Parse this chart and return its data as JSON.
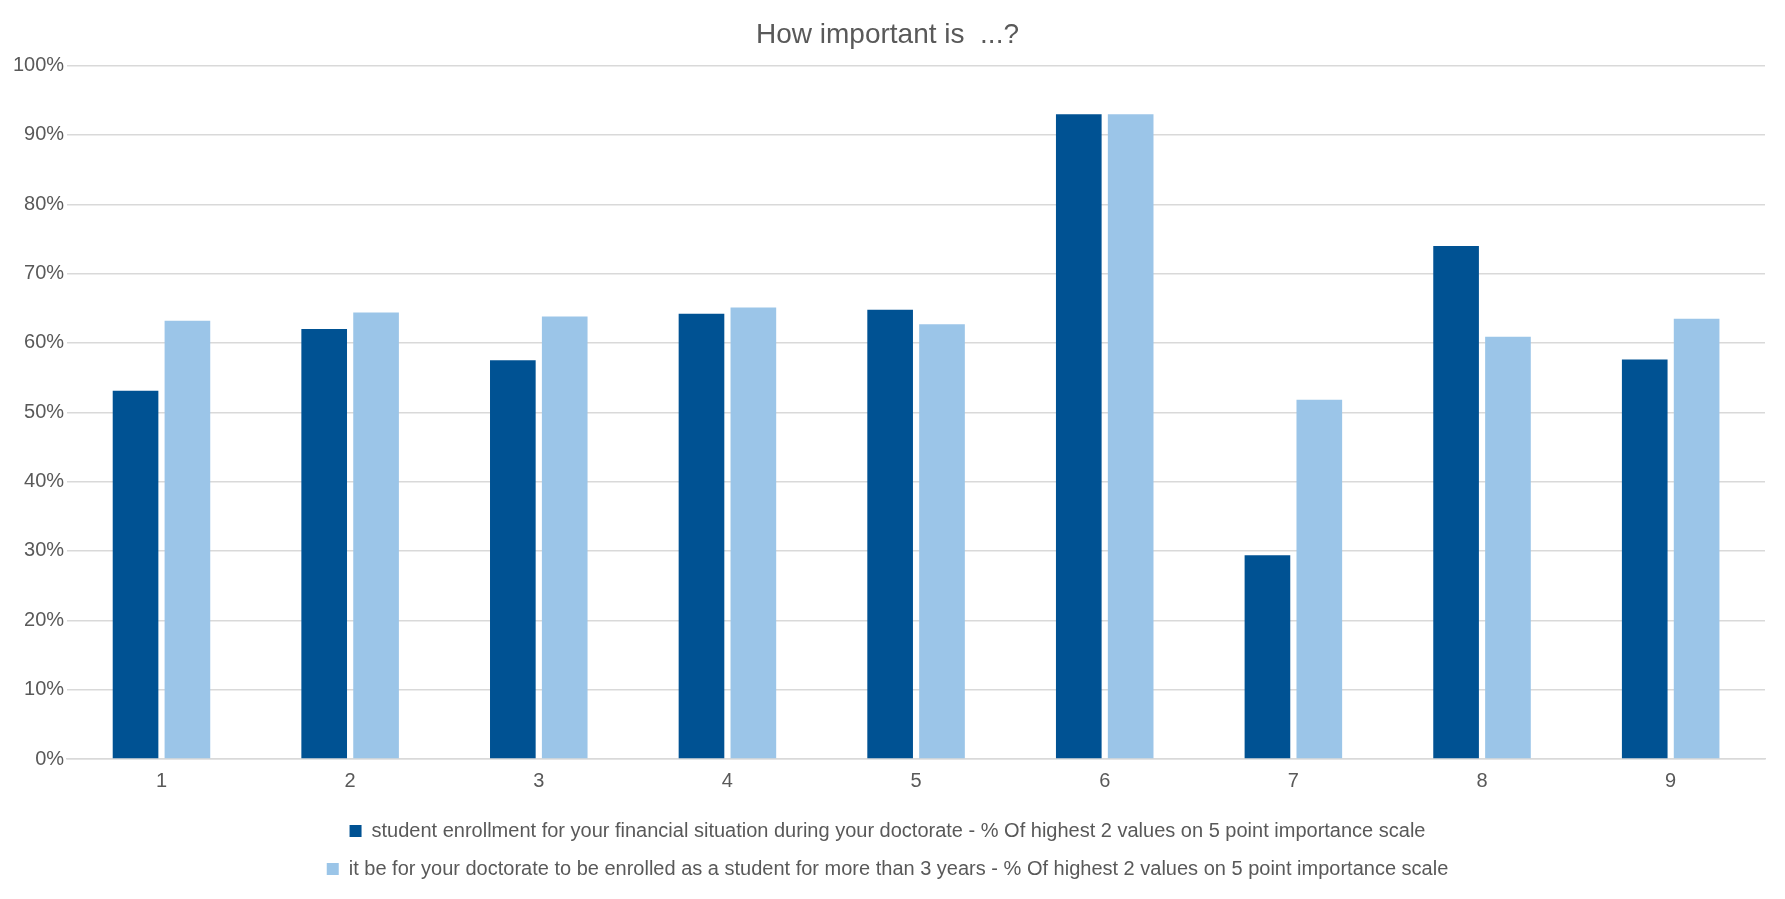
{
  "chart_data": {
    "type": "bar",
    "title": "How important is  ...?",
    "categories": [
      "1",
      "2",
      "3",
      "4",
      "5",
      "6",
      "7",
      "8",
      "9"
    ],
    "series": [
      {
        "name": "student enrollment for your financial situation during your doctorate - % Of highest 2 values on 5 point importance scale",
        "color": "#005293",
        "values": [
          53.1,
          62,
          57.5,
          64.2,
          64.8,
          93,
          29.4,
          74,
          57.6
        ]
      },
      {
        "name": "it be for your doctorate to be enrolled as a student for more than 3 years - % Of highest 2 values on 5 point importance scale",
        "color": "#9bc5e8",
        "values": [
          63.2,
          64.4,
          63.8,
          65.1,
          62.7,
          93,
          51.8,
          60.9,
          63.5
        ]
      }
    ],
    "ylim": [
      0,
      100
    ],
    "yticks": [
      {
        "value": 0,
        "label": "0%"
      },
      {
        "value": 10,
        "label": "10%"
      },
      {
        "value": 20,
        "label": "20%"
      },
      {
        "value": 30,
        "label": "30%"
      },
      {
        "value": 40,
        "label": "40%"
      },
      {
        "value": 50,
        "label": "50%"
      },
      {
        "value": 60,
        "label": "60%"
      },
      {
        "value": 70,
        "label": "70%"
      },
      {
        "value": 80,
        "label": "80%"
      },
      {
        "value": 90,
        "label": "90%"
      },
      {
        "value": 100,
        "label": "100%"
      }
    ],
    "grid": "y",
    "legend": "bottom"
  }
}
